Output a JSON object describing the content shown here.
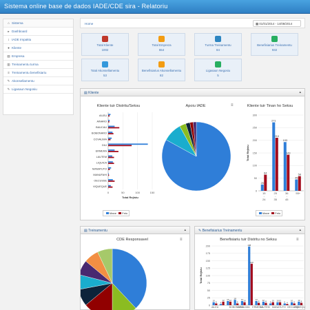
{
  "app": {
    "title": "Sistema online base de dados IADE/CDE sira - Relatoriu"
  },
  "sidebar": {
    "items": [
      {
        "label": "Sistema",
        "icon": "home-icon",
        "glyph": "⌂"
      },
      {
        "label": "Dashboard",
        "icon": "dashboard-icon",
        "glyph": "▸"
      },
      {
        "label": "IADE Impaktu",
        "icon": "bar-chart-icon",
        "glyph": "↕"
      },
      {
        "label": "Kliente",
        "icon": "user-icon",
        "glyph": "●"
      },
      {
        "label": "Empresa",
        "icon": "building-icon",
        "glyph": "▤"
      },
      {
        "label": "Treinamentu turma",
        "icon": "book-icon",
        "glyph": "▥"
      },
      {
        "label": "Treinamentu benefisiariu",
        "icon": "list-icon",
        "glyph": "≡"
      },
      {
        "label": "Akonsellamentu",
        "icon": "pencil-icon",
        "glyph": "✎"
      },
      {
        "label": "Ligasaun Negosiu",
        "icon": "link-icon",
        "glyph": "✎"
      }
    ]
  },
  "breadcrumb": {
    "home": "Home"
  },
  "daterange": {
    "icon": "calendar-icon",
    "glyph": "▦",
    "value": "01/01/2014 - 14/08/2014"
  },
  "stats": [
    {
      "label": "Total Kliente",
      "value": "1002",
      "icon": "user-icon",
      "color": "#c0392b"
    },
    {
      "label": "Total Empreza",
      "value": "554",
      "icon": "briefcase-icon",
      "color": "#f39c12"
    },
    {
      "label": "Turma Treinamentu",
      "value": "84",
      "icon": "building-icon",
      "color": "#2e86c1"
    },
    {
      "label": "Benefisiarius Treinamentu",
      "value": "932",
      "icon": "users-icon",
      "color": "#27ae60"
    },
    {
      "label": "Total Akonsellamentu",
      "value": "53",
      "icon": "chat-icon",
      "color": "#3498db"
    },
    {
      "label": "Benefisiarius Akonsellamentu",
      "value": "82",
      "icon": "briefcase-icon",
      "color": "#f39c12"
    },
    {
      "label": "Ligasaun Negosiu",
      "value": "5",
      "icon": "link-icon",
      "color": "#27ae60"
    }
  ],
  "kliente_panel": {
    "title": "Kliente",
    "icon": "list-icon"
  },
  "treinamentu_panel": {
    "title": "Treinamentu",
    "icon": "list-icon"
  },
  "benef_panel": {
    "title": "Benefisiarius Treinamentu",
    "icon": "pencil-icon"
  },
  "colors": {
    "mane": "#2f7ed8",
    "feto": "#a30c1d"
  },
  "chart_data": [
    {
      "type": "bar",
      "orientation": "horizontal",
      "title": "Kliente tuir Distritu/Seksu",
      "xlabel": "Total Rejistu",
      "categories": [
        "AILEU",
        "AINARO",
        "BAUCAU",
        "BOBONARO",
        "COVALIMA",
        "DILI",
        "ERMERA",
        "LAUTEM",
        "LIQUICA",
        "MANATUTO",
        "MANUFAHI",
        "OECUSSE",
        "VIQUEQUE"
      ],
      "series": [
        {
          "name": "Mane",
          "values": [
            8,
            5,
            22,
            15,
            12,
            135,
            22,
            14,
            16,
            10,
            2,
            16,
            9
          ]
        },
        {
          "name": "Feto",
          "values": [
            5,
            4,
            38,
            18,
            8,
            80,
            35,
            20,
            20,
            6,
            3,
            22,
            15
          ]
        }
      ],
      "xticks": [
        "0",
        "50",
        "100",
        "150"
      ],
      "xlim": [
        0,
        150
      ],
      "legend": "bottom"
    },
    {
      "type": "pie",
      "title": "Apoiu IADE",
      "slices": [
        {
          "value": 83,
          "color": "#2f7ed8"
        },
        {
          "value": 9,
          "color": "#1aadce"
        },
        {
          "value": 3,
          "color": "#8bbc21"
        },
        {
          "value": 2,
          "color": "#0d233a"
        },
        {
          "value": 1.5,
          "color": "#910000"
        },
        {
          "value": 1.5,
          "color": "#492970"
        }
      ]
    },
    {
      "type": "bar",
      "title": "Kliente tuir Tinan ho Seksu",
      "ylabel": "Total Rejistu",
      "categories": [
        "15 - 24",
        "25 - 35",
        "36 - 45",
        "55+"
      ],
      "series": [
        {
          "name": "Mane",
          "values": [
            25,
            271,
            193,
            45
          ]
        },
        {
          "name": "Feto",
          "values": [
            64,
            210,
            143,
            58
          ]
        }
      ],
      "data_labels": [
        [
          "25",
          "271",
          "193",
          "45"
        ],
        [
          "64",
          "210",
          "143",
          "58"
        ]
      ],
      "yticks": [
        "0",
        "50",
        "100",
        "150",
        "200",
        "250",
        "300"
      ],
      "ylim": [
        0,
        300
      ],
      "legend": "bottom"
    },
    {
      "type": "pie",
      "title": "CDE Responsavel",
      "slices": [
        {
          "value": 38,
          "color": "#2f7ed8"
        },
        {
          "value": 12,
          "color": "#8bbc21"
        },
        {
          "value": 14,
          "color": "#910000"
        },
        {
          "value": 8,
          "color": "#0d233a"
        },
        {
          "value": 7,
          "color": "#1aadce"
        },
        {
          "value": 7,
          "color": "#492970"
        },
        {
          "value": 7,
          "color": "#f28f43"
        },
        {
          "value": 7,
          "color": "#a6c96a"
        }
      ]
    },
    {
      "type": "bar",
      "title": "Benefisiariu tuir Distritu no Seksu",
      "ylabel": "Total Rejistu",
      "categories": [
        "AILEU",
        "AINARO",
        "BAUCAU",
        "BOBONARO",
        "COVALIMA",
        "DILI",
        "ERMERA",
        "LAUTEM",
        "LIQUICA",
        "MANATUTO",
        "MANUFAHI",
        "OECUSSE",
        "VIQUEQUE"
      ],
      "xticks_shown": [
        "AILEU",
        "BOBONARO",
        "COVALIMA",
        "ERMERA",
        "LAUTEM",
        "MANATUTO",
        "OECUSSE",
        "VIQUEQUE"
      ],
      "series": [
        {
          "name": "Mane",
          "values": [
            10,
            4,
            14,
            18,
            14,
            198,
            14,
            12,
            6,
            10,
            6,
            10,
            12
          ]
        },
        {
          "name": "Feto",
          "values": [
            6,
            12,
            12,
            6,
            10,
            140,
            8,
            8,
            10,
            10,
            4,
            6,
            8
          ]
        }
      ],
      "data_labels": [
        [
          "10",
          "4",
          "14",
          "18",
          "14",
          "198",
          "14",
          "12",
          "6",
          "10",
          "6",
          "10",
          "12"
        ],
        [
          "6",
          "12",
          "12",
          "6",
          "10",
          "140",
          "8",
          "8",
          "10",
          "10",
          "4",
          "6",
          "8"
        ]
      ],
      "yticks": [
        "0",
        "25",
        "50",
        "75",
        "100",
        "125",
        "150",
        "175",
        "200"
      ],
      "ylim": [
        0,
        200
      ]
    }
  ]
}
